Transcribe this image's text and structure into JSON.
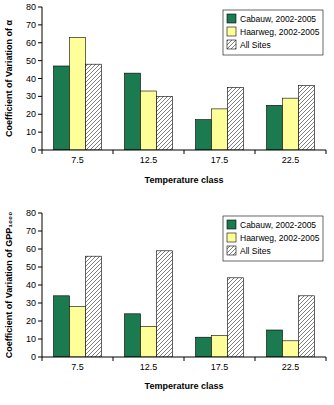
{
  "chart_data": [
    {
      "type": "bar",
      "x_label": "Temperature class",
      "y_label": "Coefficient of Variation of α",
      "categories": [
        "7.5",
        "12.5",
        "17.5",
        "22.5"
      ],
      "series": [
        {
          "name": "Cabauw, 2002-2005",
          "color": "#1b7a4f",
          "values": [
            47,
            43,
            17,
            25
          ]
        },
        {
          "name": "Haarweg, 2002-2005",
          "color": "#ffff99",
          "values": [
            63,
            33,
            23,
            29
          ]
        },
        {
          "name": "All Sites",
          "color": "#808080",
          "values": [
            48,
            30,
            35,
            36
          ]
        }
      ],
      "ylim": [
        0,
        80
      ],
      "yticks": [
        0,
        10,
        20,
        30,
        40,
        50,
        60,
        70,
        80
      ],
      "legend": "top-right",
      "grid": false
    },
    {
      "type": "bar",
      "x_label": "Temperature class",
      "y_label": "Coefficient of Variation of GPP₁₀₀₀",
      "categories": [
        "7.5",
        "12.5",
        "17.5",
        "22.5"
      ],
      "series": [
        {
          "name": "Cabauw, 2002-2005",
          "color": "#1b7a4f",
          "values": [
            34,
            24,
            11,
            15
          ]
        },
        {
          "name": "Haarweg, 2002-2005",
          "color": "#ffff99",
          "values": [
            28,
            17,
            12,
            9
          ]
        },
        {
          "name": "All Sites",
          "color": "#808080",
          "values": [
            56,
            59,
            44,
            34
          ]
        }
      ],
      "ylim": [
        0,
        80
      ],
      "yticks": [
        0,
        10,
        20,
        30,
        40,
        50,
        60,
        70,
        80
      ],
      "legend": "top-right",
      "grid": false
    }
  ]
}
